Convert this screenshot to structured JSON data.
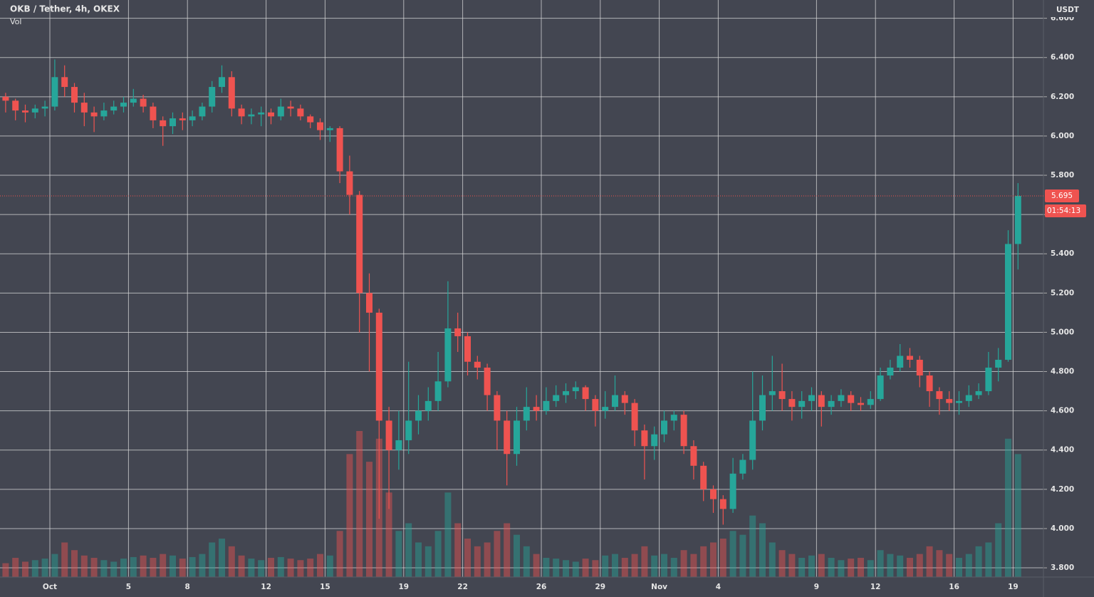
{
  "chart_data": {
    "type": "candlestick",
    "title": "OKB / Tether, 4h, OKEX",
    "volume_label": "Vol",
    "currency": "USDT",
    "last_price": 5.695,
    "countdown": "01:54:13",
    "up_color": "#26a69a",
    "down_color": "#ef5350",
    "grid": true,
    "ylim": [
      3.753,
      6.693
    ],
    "yticks": [
      {
        "value": 3.8,
        "label": "3.800"
      },
      {
        "value": 4.0,
        "label": "4.000"
      },
      {
        "value": 4.2,
        "label": "4.200"
      },
      {
        "value": 4.4,
        "label": "4.400"
      },
      {
        "value": 4.6,
        "label": "4.600"
      },
      {
        "value": 4.8,
        "label": "4.800"
      },
      {
        "value": 5.0,
        "label": "5.000"
      },
      {
        "value": 5.2,
        "label": "5.200"
      },
      {
        "value": 5.4,
        "label": "5.400"
      },
      {
        "value": 5.6,
        "label": "5.600"
      },
      {
        "value": 5.8,
        "label": "5.800"
      },
      {
        "value": 6.0,
        "label": "6.000"
      },
      {
        "value": 6.2,
        "label": "6.200"
      },
      {
        "value": 6.4,
        "label": "6.400"
      },
      {
        "value": 6.6,
        "label": "6.600"
      }
    ],
    "categories": [
      null,
      null,
      null,
      null,
      null,
      "Oct",
      null,
      null,
      null,
      null,
      null,
      null,
      null,
      "5",
      null,
      null,
      null,
      null,
      null,
      "8",
      null,
      null,
      null,
      null,
      null,
      null,
      null,
      "12",
      null,
      null,
      null,
      null,
      null,
      "15",
      null,
      null,
      null,
      null,
      null,
      null,
      null,
      "19",
      null,
      null,
      null,
      null,
      null,
      "22",
      null,
      null,
      null,
      null,
      null,
      null,
      null,
      "26",
      null,
      null,
      null,
      null,
      null,
      "29",
      null,
      null,
      null,
      null,
      null,
      "Nov",
      null,
      null,
      null,
      null,
      null,
      "4",
      null,
      null,
      null,
      null,
      null,
      null,
      null,
      null,
      null,
      "9",
      null,
      null,
      null,
      null,
      null,
      "12",
      null,
      null,
      null,
      null,
      null,
      null,
      null,
      "16",
      null,
      null,
      null,
      null,
      null,
      "19"
    ],
    "open": [
      6.2,
      6.18,
      6.13,
      6.12,
      6.14,
      6.15,
      6.3,
      6.25,
      6.17,
      6.12,
      6.1,
      6.13,
      6.15,
      6.17,
      6.19,
      6.15,
      6.08,
      6.05,
      6.09,
      6.08,
      6.1,
      6.15,
      6.25,
      6.3,
      6.14,
      6.1,
      6.11,
      6.12,
      6.1,
      6.15,
      6.14,
      6.1,
      6.07,
      6.03,
      6.04,
      5.82,
      5.7,
      5.2,
      5.1,
      4.55,
      4.4,
      4.45,
      4.55,
      4.6,
      4.65,
      4.75,
      5.02,
      4.98,
      4.85,
      4.82,
      4.68,
      4.55,
      4.38,
      4.55,
      4.62,
      4.6,
      4.65,
      4.68,
      4.7,
      4.72,
      4.66,
      4.6,
      4.62,
      4.68,
      4.64,
      4.5,
      4.42,
      4.48,
      4.55,
      4.58,
      4.42,
      4.32,
      4.2,
      4.15,
      4.1,
      4.28,
      4.35,
      4.55,
      4.68,
      4.7,
      4.66,
      4.62,
      4.65,
      4.68,
      4.62,
      4.65,
      4.68,
      4.64,
      4.63,
      4.66,
      4.78,
      4.82,
      4.88,
      4.86,
      4.78,
      4.7,
      4.66,
      4.64,
      4.65,
      4.68,
      4.7,
      4.82,
      4.86,
      5.45
    ],
    "high": [
      6.22,
      6.19,
      6.16,
      6.16,
      6.18,
      6.39,
      6.36,
      6.27,
      6.22,
      6.15,
      6.17,
      6.18,
      6.2,
      6.24,
      6.21,
      6.17,
      6.1,
      6.12,
      6.12,
      6.13,
      6.17,
      6.28,
      6.36,
      6.33,
      6.16,
      6.14,
      6.15,
      6.14,
      6.19,
      6.18,
      6.16,
      6.11,
      6.09,
      6.05,
      6.05,
      5.9,
      5.72,
      5.3,
      5.12,
      4.62,
      4.6,
      4.85,
      4.68,
      4.72,
      4.9,
      5.26,
      5.1,
      5.0,
      4.88,
      4.84,
      4.7,
      4.6,
      4.62,
      4.72,
      4.68,
      4.72,
      4.73,
      4.74,
      4.75,
      4.73,
      4.68,
      4.7,
      4.78,
      4.7,
      4.66,
      4.53,
      4.52,
      4.6,
      4.6,
      4.6,
      4.45,
      4.34,
      4.22,
      4.17,
      4.36,
      4.38,
      4.8,
      4.78,
      4.88,
      4.84,
      4.7,
      4.7,
      4.72,
      4.7,
      4.68,
      4.71,
      4.7,
      4.67,
      4.7,
      4.82,
      4.86,
      4.94,
      4.92,
      4.88,
      4.8,
      4.72,
      4.7,
      4.7,
      4.73,
      4.74,
      4.9,
      4.92,
      5.52,
      5.76
    ],
    "low": [
      6.12,
      6.08,
      6.07,
      6.09,
      6.1,
      6.13,
      6.2,
      6.12,
      6.05,
      6.02,
      6.08,
      6.11,
      6.12,
      6.15,
      6.12,
      6.04,
      5.95,
      6.01,
      6.03,
      6.05,
      6.08,
      6.12,
      6.22,
      6.1,
      6.06,
      6.06,
      6.05,
      6.06,
      6.08,
      6.1,
      6.08,
      6.04,
      5.98,
      5.97,
      5.76,
      5.6,
      5.0,
      4.8,
      4.05,
      4.1,
      4.3,
      4.38,
      4.48,
      4.55,
      4.6,
      4.72,
      4.9,
      4.78,
      4.76,
      4.6,
      4.4,
      4.22,
      4.32,
      4.5,
      4.55,
      4.58,
      4.62,
      4.64,
      4.66,
      4.6,
      4.52,
      4.56,
      4.6,
      4.58,
      4.42,
      4.25,
      4.35,
      4.44,
      4.5,
      4.38,
      4.25,
      4.14,
      4.08,
      4.02,
      4.08,
      4.25,
      4.3,
      4.5,
      4.6,
      4.6,
      4.55,
      4.56,
      4.6,
      4.52,
      4.58,
      4.62,
      4.6,
      4.6,
      4.61,
      4.65,
      4.76,
      4.8,
      4.82,
      4.72,
      4.62,
      4.58,
      4.6,
      4.58,
      4.62,
      4.66,
      4.68,
      4.75,
      4.85,
      5.32
    ],
    "close": [
      6.18,
      6.13,
      6.12,
      6.14,
      6.15,
      6.3,
      6.25,
      6.17,
      6.12,
      6.1,
      6.13,
      6.15,
      6.17,
      6.19,
      6.15,
      6.08,
      6.05,
      6.09,
      6.08,
      6.1,
      6.15,
      6.25,
      6.3,
      6.14,
      6.1,
      6.11,
      6.12,
      6.1,
      6.15,
      6.14,
      6.1,
      6.07,
      6.03,
      6.04,
      5.82,
      5.7,
      5.2,
      5.1,
      4.55,
      4.4,
      4.45,
      4.55,
      4.6,
      4.65,
      4.75,
      5.02,
      4.98,
      4.85,
      4.82,
      4.68,
      4.55,
      4.38,
      4.55,
      4.62,
      4.6,
      4.65,
      4.68,
      4.7,
      4.72,
      4.66,
      4.6,
      4.62,
      4.68,
      4.64,
      4.5,
      4.42,
      4.48,
      4.55,
      4.58,
      4.42,
      4.32,
      4.2,
      4.15,
      4.1,
      4.28,
      4.35,
      4.55,
      4.68,
      4.7,
      4.66,
      4.62,
      4.65,
      4.68,
      4.62,
      4.65,
      4.68,
      4.64,
      4.63,
      4.66,
      4.78,
      4.82,
      4.88,
      4.86,
      4.78,
      4.7,
      4.66,
      4.64,
      4.65,
      4.68,
      4.7,
      4.82,
      4.86,
      5.45,
      5.695
    ],
    "volume": [
      18,
      25,
      20,
      22,
      24,
      30,
      45,
      35,
      28,
      25,
      22,
      20,
      24,
      26,
      28,
      25,
      30,
      28,
      24,
      26,
      30,
      45,
      50,
      40,
      28,
      24,
      22,
      25,
      26,
      24,
      22,
      24,
      30,
      28,
      60,
      160,
      190,
      150,
      180,
      110,
      60,
      70,
      45,
      40,
      60,
      110,
      70,
      50,
      40,
      45,
      60,
      70,
      55,
      40,
      30,
      25,
      24,
      22,
      20,
      24,
      22,
      28,
      30,
      25,
      30,
      40,
      28,
      30,
      25,
      35,
      30,
      40,
      45,
      50,
      60,
      55,
      80,
      70,
      45,
      35,
      30,
      25,
      28,
      30,
      25,
      22,
      24,
      25,
      22,
      35,
      30,
      28,
      25,
      30,
      40,
      35,
      30,
      25,
      30,
      40,
      45,
      70,
      180,
      160
    ]
  }
}
